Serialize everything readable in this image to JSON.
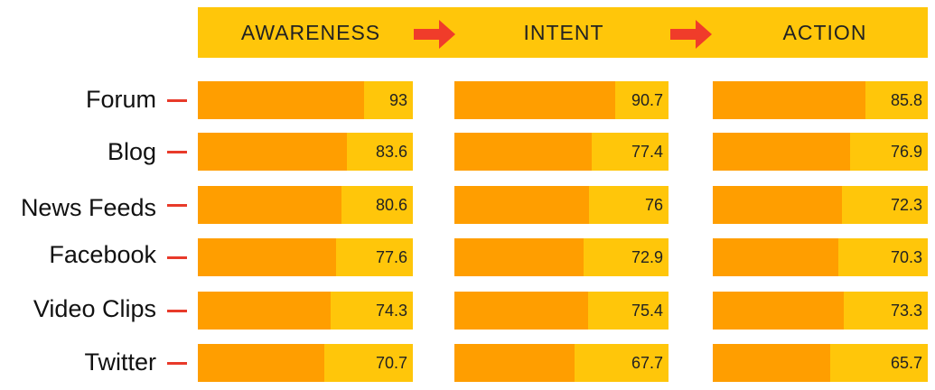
{
  "colors": {
    "band": "#FFC60A",
    "fill": "#FF9E00",
    "arrow": "#F03C2A",
    "tick": "#E83A2A"
  },
  "icons": {
    "stage_arrow": "right-arrow-icon",
    "row_tick": "dash-icon"
  },
  "chart_data": {
    "type": "bar",
    "orientation": "horizontal",
    "stages": [
      "AWARENESS",
      "INTENT",
      "ACTION"
    ],
    "categories": [
      "Forum",
      "Blog",
      "News Feeds",
      "Facebook",
      "Video Clips",
      "Twitter"
    ],
    "series": [
      {
        "name": "AWARENESS",
        "values": [
          93,
          83.6,
          80.6,
          77.6,
          74.3,
          70.7
        ]
      },
      {
        "name": "INTENT",
        "values": [
          90.7,
          77.4,
          76,
          72.9,
          75.4,
          67.7
        ]
      },
      {
        "name": "ACTION",
        "values": [
          85.8,
          76.9,
          72.3,
          70.3,
          73.3,
          65.7
        ]
      }
    ]
  }
}
